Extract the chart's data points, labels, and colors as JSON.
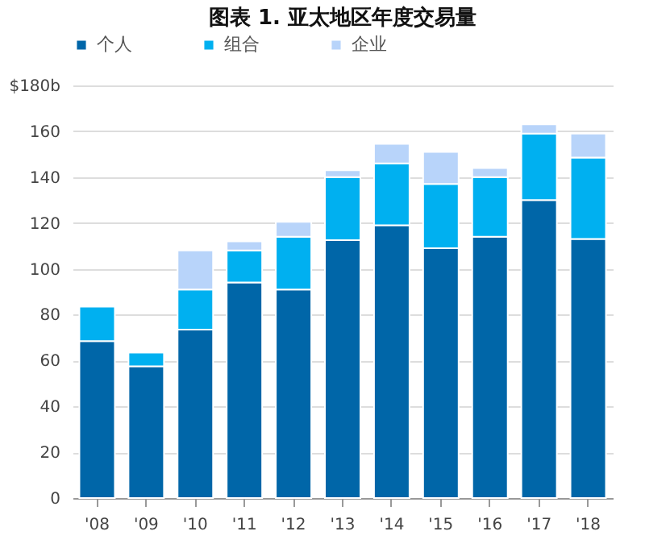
{
  "chart_data": {
    "type": "bar",
    "title": "图表 1. 亚太地区年度交易量",
    "stacked": true,
    "categories": [
      "'08",
      "'09",
      "'10",
      "'11",
      "'12",
      "'13",
      "'14",
      "'15",
      "'16",
      "'17",
      "'18"
    ],
    "series": [
      {
        "name": "个人",
        "color": "#0066a8",
        "values": [
          68.5,
          57.5,
          73.5,
          94,
          91,
          112.5,
          119,
          109,
          114,
          130,
          113
        ]
      },
      {
        "name": "组合",
        "color": "#00b0f0",
        "values": [
          15,
          6,
          17.5,
          14,
          23,
          27.5,
          27,
          28,
          26,
          29,
          35.5
        ]
      },
      {
        "name": "企业",
        "color": "#b8d4fa",
        "values": [
          null,
          null,
          17,
          4,
          6.5,
          3,
          8.5,
          14,
          4,
          4,
          10.5
        ]
      }
    ],
    "ylim": [
      0,
      180
    ],
    "yticks": [
      0,
      20,
      40,
      60,
      80,
      100,
      120,
      140,
      160,
      {
        "value": 180,
        "label": "$180b"
      }
    ],
    "grid": "y",
    "legend": "top"
  }
}
